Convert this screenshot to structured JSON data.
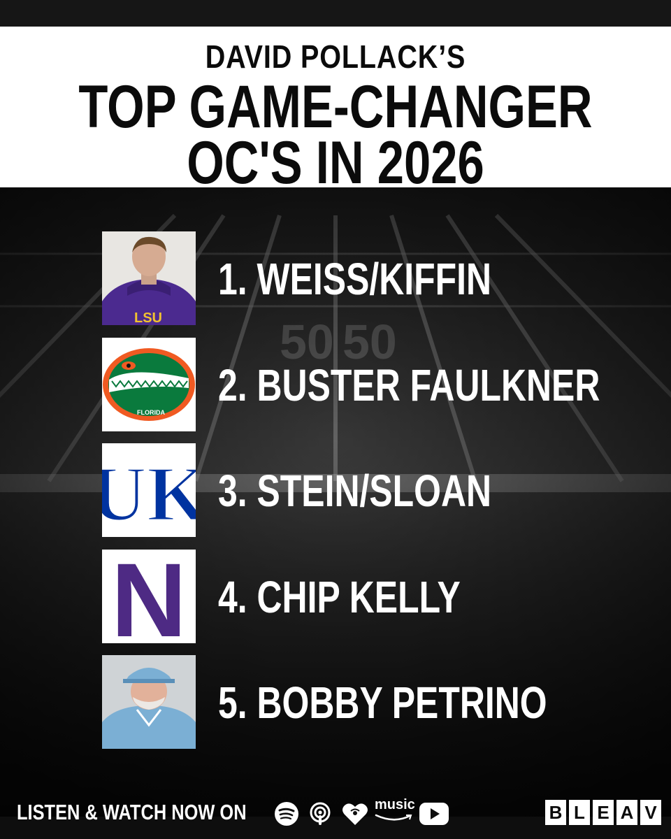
{
  "header": {
    "pre_title": "DAVID POLLACK’S",
    "title_line1": "TOP GAME-CHANGER",
    "title_line2": "OC'S IN 2026"
  },
  "field": {
    "yard_numbers": [
      "50",
      "50"
    ]
  },
  "rankings": [
    {
      "label": "1. WEISS/KIFFIN",
      "thumb": "coach-photo-lsu"
    },
    {
      "label": "2. BUSTER FAULKNER",
      "thumb": "florida-gators-logo"
    },
    {
      "label": "3. STEIN/SLOAN",
      "thumb": "kentucky-uk-logo"
    },
    {
      "label": "4. CHIP KELLY",
      "thumb": "northwestern-n-logo"
    },
    {
      "label": "5. BOBBY PETRINO",
      "thumb": "coach-photo-unc"
    }
  ],
  "lsu_text": "LSU",
  "florida_text": "FLORIDA",
  "uk_text": "UK",
  "nw_text": "N",
  "footer": {
    "cta": "LISTEN & WATCH NOW ON",
    "music_label": "music",
    "icons": [
      "spotify-icon",
      "podcasts-icon",
      "iheart-icon",
      "amazon-music-icon",
      "youtube-icon"
    ]
  },
  "brand": {
    "letters": [
      "B",
      "L",
      "E",
      "A",
      "V"
    ]
  },
  "colors": {
    "lsu_purple": "#4b2a8f",
    "lsu_gold": "#f2c230",
    "gator_green": "#0a7a3d",
    "gator_orange": "#f05a22",
    "uk_blue": "#0033a0",
    "nw_purple": "#4e2a84",
    "unc_blue": "#7bafd4"
  }
}
